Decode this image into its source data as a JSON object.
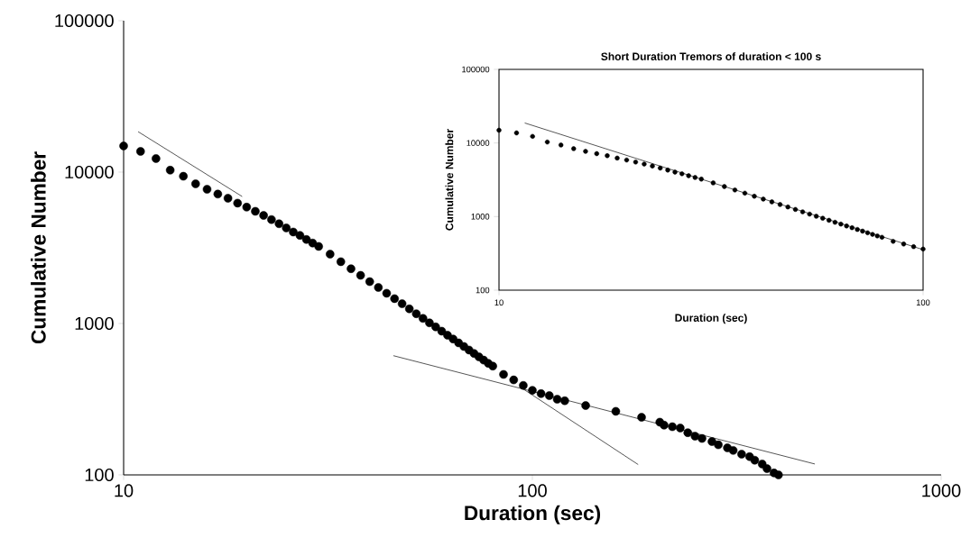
{
  "chart_data": [
    {
      "type": "scatter",
      "xlabel": "Duration (sec)",
      "ylabel": "Cumulative Number",
      "log": "xy",
      "xlim": [
        10,
        1000
      ],
      "ylim": [
        100,
        100000
      ],
      "xticks": [
        10,
        100,
        1000
      ],
      "yticks": [
        100,
        1000,
        10000,
        100000
      ],
      "series": [
        {
          "marker": "circle",
          "color": "#000000",
          "x": [
            10,
            11,
            12,
            13,
            14,
            15,
            16,
            17,
            18,
            19,
            20,
            21,
            22,
            23,
            24,
            25,
            26,
            27,
            28,
            29,
            30,
            32,
            34,
            36,
            38,
            40,
            42,
            44,
            46,
            48,
            50,
            52,
            54,
            56,
            58,
            60,
            62,
            64,
            66,
            68,
            70,
            72,
            74,
            76,
            78,
            80,
            85,
            90,
            95,
            100,
            105,
            110,
            115,
            120,
            135,
            160,
            185,
            205,
            210,
            220,
            230,
            240,
            250,
            260,
            275,
            285,
            300,
            310,
            325,
            340,
            350,
            365,
            375,
            390,
            400
          ],
          "values": [
            14900,
            13700,
            12300,
            10300,
            9390,
            8370,
            7700,
            7160,
            6720,
            6240,
            5870,
            5510,
            5170,
            4860,
            4560,
            4280,
            4020,
            3820,
            3590,
            3400,
            3230,
            2870,
            2560,
            2300,
            2080,
            1890,
            1730,
            1585,
            1460,
            1350,
            1250,
            1160,
            1080,
            1010,
            950,
            890,
            837,
            790,
            745,
            705,
            668,
            634,
            602,
            573,
            546,
            523,
            461,
            424,
            390,
            362,
            344,
            334,
            316,
            309,
            287,
            263,
            240,
            223,
            213,
            208,
            204,
            190,
            180,
            174,
            166,
            158,
            151,
            145,
            137,
            132,
            125,
            118,
            110,
            103,
            100
          ]
        },
        {
          "type": "line",
          "marker": "none",
          "color": "#000000",
          "x": [
            10.85,
            19.5
          ],
          "values": [
            18500,
            6900
          ]
        },
        {
          "type": "line",
          "marker": "none",
          "color": "#000000",
          "x": [
            95,
            181.5
          ],
          "values": [
            369,
            117
          ]
        },
        {
          "type": "line",
          "marker": "none",
          "color": "#000000",
          "x": [
            45.7,
            491
          ],
          "values": [
            613,
            118
          ]
        }
      ]
    },
    {
      "type": "scatter",
      "title": "Short Duration Tremors of duration < 100 s",
      "xlabel": "Duration (sec)",
      "ylabel": "Cumulative Number",
      "log": "xy",
      "xlim": [
        10,
        100
      ],
      "ylim": [
        100,
        100000
      ],
      "xticks": [
        10,
        100
      ],
      "yticks": [
        100,
        1000,
        10000,
        100000
      ],
      "series": [
        {
          "marker": "circle",
          "color": "#000000",
          "x": [
            10,
            11,
            12,
            13,
            14,
            15,
            16,
            17,
            18,
            19,
            20,
            21,
            22,
            23,
            24,
            25,
            26,
            27,
            28,
            29,
            30,
            32,
            34,
            36,
            38,
            40,
            42,
            44,
            46,
            48,
            50,
            52,
            54,
            56,
            58,
            60,
            62,
            64,
            66,
            68,
            70,
            72,
            74,
            76,
            78,
            80,
            85,
            90,
            95,
            100
          ],
          "values": [
            14900,
            13700,
            12300,
            10300,
            9390,
            8370,
            7700,
            7160,
            6720,
            6240,
            5870,
            5510,
            5170,
            4860,
            4560,
            4280,
            4020,
            3820,
            3590,
            3400,
            3230,
            2870,
            2560,
            2300,
            2080,
            1890,
            1730,
            1585,
            1460,
            1350,
            1250,
            1160,
            1080,
            1010,
            950,
            890,
            837,
            790,
            745,
            705,
            668,
            634,
            602,
            573,
            546,
            523,
            461,
            424,
            390,
            362
          ]
        },
        {
          "type": "line",
          "marker": "none",
          "color": "#000000",
          "x": [
            11.5,
            100
          ],
          "values": [
            18700,
            355
          ]
        }
      ]
    }
  ]
}
